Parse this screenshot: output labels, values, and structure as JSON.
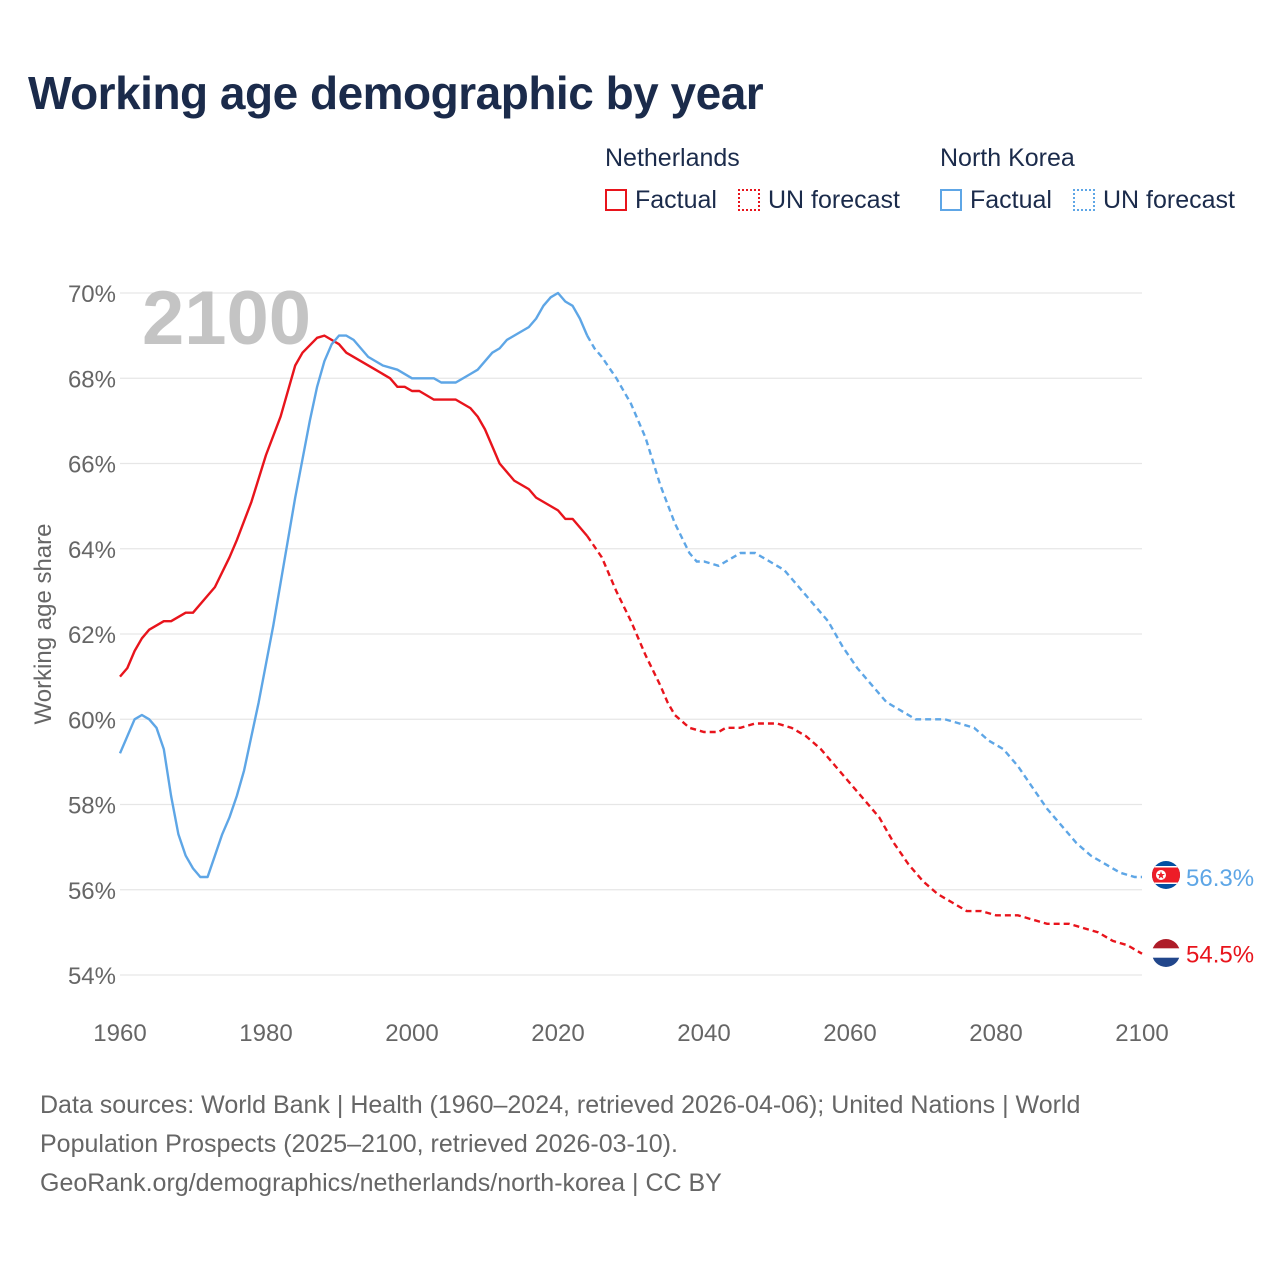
{
  "title": "Working age demographic by year",
  "legend": {
    "groups": [
      {
        "country": "Netherlands",
        "factual_label": "Factual",
        "forecast_label": "UN forecast",
        "color": "#e8141c"
      },
      {
        "country": "North Korea",
        "factual_label": "Factual",
        "forecast_label": "UN forecast",
        "color": "#5ea6e6"
      }
    ]
  },
  "footer": {
    "line1": "Data sources: World Bank | Health (1960–2024, retrieved 2026-04-06); United Nations | World",
    "line2": "Population Prospects (2025–2100, retrieved 2026-03-10).",
    "line3": "GeoRank.org/demographics/netherlands/north-korea | CC BY"
  },
  "chart_data": {
    "type": "line",
    "title": "Working age demographic by year",
    "ylabel": "Working age share",
    "xlabel": "",
    "year_label": "2100",
    "xlim": [
      1960,
      2100
    ],
    "ylim": [
      53.6,
      70
    ],
    "x_ticks": [
      1960,
      1980,
      2000,
      2020,
      2040,
      2060,
      2080,
      2100
    ],
    "y_ticks": [
      54,
      56,
      58,
      60,
      62,
      64,
      66,
      68,
      70
    ],
    "y_tick_suffix": "%",
    "factual_end": 2024,
    "series": [
      {
        "name": "Netherlands",
        "color": "#e8141c",
        "end_label": "54.5%",
        "points": [
          [
            1960,
            61.0
          ],
          [
            1961,
            61.2
          ],
          [
            1962,
            61.6
          ],
          [
            1963,
            61.9
          ],
          [
            1964,
            62.1
          ],
          [
            1966,
            62.3
          ],
          [
            1967,
            62.3
          ],
          [
            1969,
            62.5
          ],
          [
            1970,
            62.5
          ],
          [
            1972,
            62.9
          ],
          [
            1973,
            63.1
          ],
          [
            1975,
            63.8
          ],
          [
            1976,
            64.2
          ],
          [
            1978,
            65.1
          ],
          [
            1980,
            66.2
          ],
          [
            1982,
            67.1
          ],
          [
            1984,
            68.3
          ],
          [
            1985,
            68.6
          ],
          [
            1987,
            68.95
          ],
          [
            1988,
            69.0
          ],
          [
            1990,
            68.8
          ],
          [
            1991,
            68.6
          ],
          [
            1993,
            68.4
          ],
          [
            1995,
            68.2
          ],
          [
            1997,
            68.0
          ],
          [
            1998,
            67.8
          ],
          [
            1999,
            67.8
          ],
          [
            2000,
            67.7
          ],
          [
            2001,
            67.7
          ],
          [
            2003,
            67.5
          ],
          [
            2005,
            67.5
          ],
          [
            2006,
            67.5
          ],
          [
            2008,
            67.3
          ],
          [
            2009,
            67.1
          ],
          [
            2010,
            66.8
          ],
          [
            2011,
            66.4
          ],
          [
            2012,
            66.0
          ],
          [
            2014,
            65.6
          ],
          [
            2016,
            65.4
          ],
          [
            2017,
            65.2
          ],
          [
            2019,
            65.0
          ],
          [
            2020,
            64.9
          ],
          [
            2021,
            64.7
          ],
          [
            2022,
            64.7
          ],
          [
            2024,
            64.3
          ],
          [
            2026,
            63.8
          ],
          [
            2028,
            63.0
          ],
          [
            2030,
            62.3
          ],
          [
            2032,
            61.5
          ],
          [
            2034,
            60.8
          ],
          [
            2035,
            60.4
          ],
          [
            2036,
            60.1
          ],
          [
            2038,
            59.8
          ],
          [
            2040,
            59.7
          ],
          [
            2042,
            59.7
          ],
          [
            2043,
            59.8
          ],
          [
            2045,
            59.8
          ],
          [
            2047,
            59.9
          ],
          [
            2050,
            59.9
          ],
          [
            2052,
            59.8
          ],
          [
            2054,
            59.6
          ],
          [
            2056,
            59.3
          ],
          [
            2058,
            58.9
          ],
          [
            2060,
            58.5
          ],
          [
            2062,
            58.1
          ],
          [
            2064,
            57.7
          ],
          [
            2066,
            57.1
          ],
          [
            2068,
            56.6
          ],
          [
            2070,
            56.2
          ],
          [
            2072,
            55.9
          ],
          [
            2074,
            55.7
          ],
          [
            2076,
            55.5
          ],
          [
            2078,
            55.5
          ],
          [
            2080,
            55.4
          ],
          [
            2083,
            55.4
          ],
          [
            2085,
            55.3
          ],
          [
            2087,
            55.2
          ],
          [
            2090,
            55.2
          ],
          [
            2092,
            55.1
          ],
          [
            2094,
            55.0
          ],
          [
            2096,
            54.8
          ],
          [
            2098,
            54.7
          ],
          [
            2100,
            54.5
          ]
        ]
      },
      {
        "name": "North Korea",
        "color": "#5ea6e6",
        "end_label": "56.3%",
        "points": [
          [
            1960,
            59.2
          ],
          [
            1961,
            59.6
          ],
          [
            1962,
            60.0
          ],
          [
            1963,
            60.1
          ],
          [
            1964,
            60.0
          ],
          [
            1965,
            59.8
          ],
          [
            1966,
            59.3
          ],
          [
            1967,
            58.2
          ],
          [
            1968,
            57.3
          ],
          [
            1969,
            56.8
          ],
          [
            1970,
            56.5
          ],
          [
            1971,
            56.3
          ],
          [
            1972,
            56.3
          ],
          [
            1973,
            56.8
          ],
          [
            1974,
            57.3
          ],
          [
            1975,
            57.7
          ],
          [
            1976,
            58.2
          ],
          [
            1977,
            58.8
          ],
          [
            1978,
            59.6
          ],
          [
            1979,
            60.4
          ],
          [
            1980,
            61.3
          ],
          [
            1981,
            62.2
          ],
          [
            1982,
            63.2
          ],
          [
            1983,
            64.2
          ],
          [
            1984,
            65.2
          ],
          [
            1985,
            66.1
          ],
          [
            1986,
            67.0
          ],
          [
            1987,
            67.8
          ],
          [
            1988,
            68.4
          ],
          [
            1989,
            68.8
          ],
          [
            1990,
            69.0
          ],
          [
            1991,
            69.0
          ],
          [
            1992,
            68.9
          ],
          [
            1993,
            68.7
          ],
          [
            1994,
            68.5
          ],
          [
            1996,
            68.3
          ],
          [
            1998,
            68.2
          ],
          [
            2000,
            68.0
          ],
          [
            2003,
            68.0
          ],
          [
            2004,
            67.9
          ],
          [
            2006,
            67.9
          ],
          [
            2008,
            68.1
          ],
          [
            2009,
            68.2
          ],
          [
            2011,
            68.6
          ],
          [
            2012,
            68.7
          ],
          [
            2013,
            68.9
          ],
          [
            2015,
            69.1
          ],
          [
            2016,
            69.2
          ],
          [
            2017,
            69.4
          ],
          [
            2018,
            69.7
          ],
          [
            2019,
            69.9
          ],
          [
            2020,
            70.0
          ],
          [
            2021,
            69.8
          ],
          [
            2022,
            69.7
          ],
          [
            2023,
            69.4
          ],
          [
            2024,
            69.0
          ],
          [
            2025,
            68.7
          ],
          [
            2026,
            68.5
          ],
          [
            2028,
            68.0
          ],
          [
            2030,
            67.4
          ],
          [
            2032,
            66.6
          ],
          [
            2034,
            65.5
          ],
          [
            2036,
            64.6
          ],
          [
            2038,
            63.9
          ],
          [
            2039,
            63.7
          ],
          [
            2040,
            63.7
          ],
          [
            2042,
            63.6
          ],
          [
            2043,
            63.7
          ],
          [
            2045,
            63.9
          ],
          [
            2047,
            63.9
          ],
          [
            2049,
            63.7
          ],
          [
            2051,
            63.5
          ],
          [
            2053,
            63.1
          ],
          [
            2055,
            62.7
          ],
          [
            2057,
            62.3
          ],
          [
            2059,
            61.7
          ],
          [
            2061,
            61.2
          ],
          [
            2063,
            60.8
          ],
          [
            2065,
            60.4
          ],
          [
            2067,
            60.2
          ],
          [
            2069,
            60.0
          ],
          [
            2073,
            60.0
          ],
          [
            2075,
            59.9
          ],
          [
            2077,
            59.8
          ],
          [
            2079,
            59.5
          ],
          [
            2081,
            59.3
          ],
          [
            2083,
            58.9
          ],
          [
            2085,
            58.4
          ],
          [
            2087,
            57.9
          ],
          [
            2089,
            57.5
          ],
          [
            2091,
            57.1
          ],
          [
            2093,
            56.8
          ],
          [
            2095,
            56.6
          ],
          [
            2097,
            56.4
          ],
          [
            2099,
            56.3
          ],
          [
            2100,
            56.3
          ]
        ]
      }
    ]
  }
}
